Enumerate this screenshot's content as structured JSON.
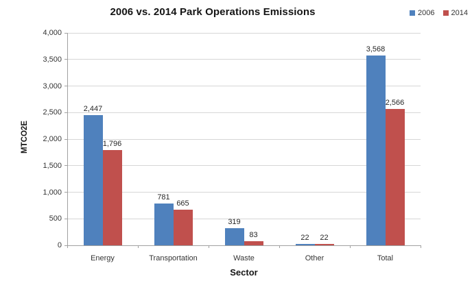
{
  "chart_data": {
    "type": "bar",
    "title": "2006 vs. 2014 Park Operations Emissions",
    "xlabel": "Sector",
    "ylabel": "MTCO2E",
    "categories": [
      "Energy",
      "Transportation",
      "Waste",
      "Other",
      "Total"
    ],
    "series": [
      {
        "name": "2006",
        "color": "#4F81BD",
        "values": [
          2447,
          781,
          319,
          22,
          3568
        ]
      },
      {
        "name": "2014",
        "color": "#C0504D",
        "values": [
          1796,
          665,
          83,
          22,
          2566
        ]
      }
    ],
    "ylim": [
      0,
      4000
    ],
    "ytick_step": 500,
    "grid": true,
    "legend_position": "top-right",
    "colors": {
      "grid": "#d6d6d6",
      "axis": "#a0a0a0",
      "text": "#333333",
      "title": "#141414"
    }
  }
}
